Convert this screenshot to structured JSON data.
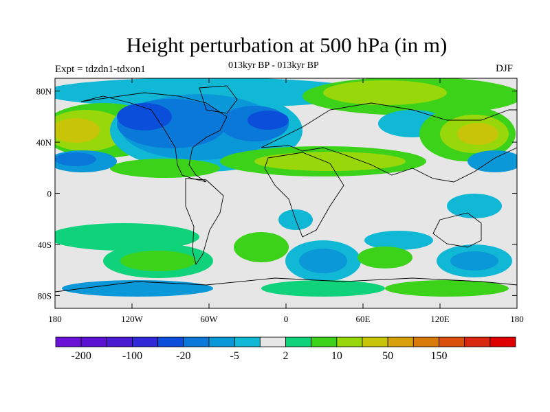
{
  "title": "Height perturbation at 500 hPa (in m)",
  "experiment": "Expt = tdzdn1-tdxon1",
  "period": "013kyr BP - 013kyr BP",
  "season": "DJF",
  "map": {
    "lat_ticks": [
      {
        "value": 80,
        "label": "80N"
      },
      {
        "value": 40,
        "label": "40N"
      },
      {
        "value": 0,
        "label": "0"
      },
      {
        "value": -40,
        "label": "40S"
      },
      {
        "value": -80,
        "label": "80S"
      }
    ],
    "lon_ticks": [
      {
        "value": -180,
        "label": "180"
      },
      {
        "value": -120,
        "label": "120W"
      },
      {
        "value": -60,
        "label": "60W"
      },
      {
        "value": 0,
        "label": "0"
      },
      {
        "value": 60,
        "label": "60E"
      },
      {
        "value": 120,
        "label": "120E"
      },
      {
        "value": 180,
        "label": "180"
      }
    ],
    "lon_range": [
      -180,
      180
    ],
    "lat_range": [
      -90,
      90
    ],
    "background_color": "#e6e6e6"
  },
  "colorbar": {
    "colors": [
      "#6a11d6",
      "#5a10d0",
      "#4a1ad0",
      "#3028d6",
      "#0a4ed9",
      "#0a78d8",
      "#0a98d8",
      "#10b8d6",
      "#e6e6e6",
      "#10d27a",
      "#3cd21a",
      "#98d80a",
      "#c8c40a",
      "#d8a00a",
      "#d87a0a",
      "#d8500a",
      "#d82810",
      "#de0000"
    ],
    "labels": [
      {
        "index": 1,
        "text": "-200"
      },
      {
        "index": 3,
        "text": "-100"
      },
      {
        "index": 5,
        "text": "-20"
      },
      {
        "index": 7,
        "text": "-5"
      },
      {
        "index": 9,
        "text": "2"
      },
      {
        "index": 11,
        "text": "10"
      },
      {
        "index": 13,
        "text": "50"
      },
      {
        "index": 15,
        "text": "150"
      }
    ]
  }
}
